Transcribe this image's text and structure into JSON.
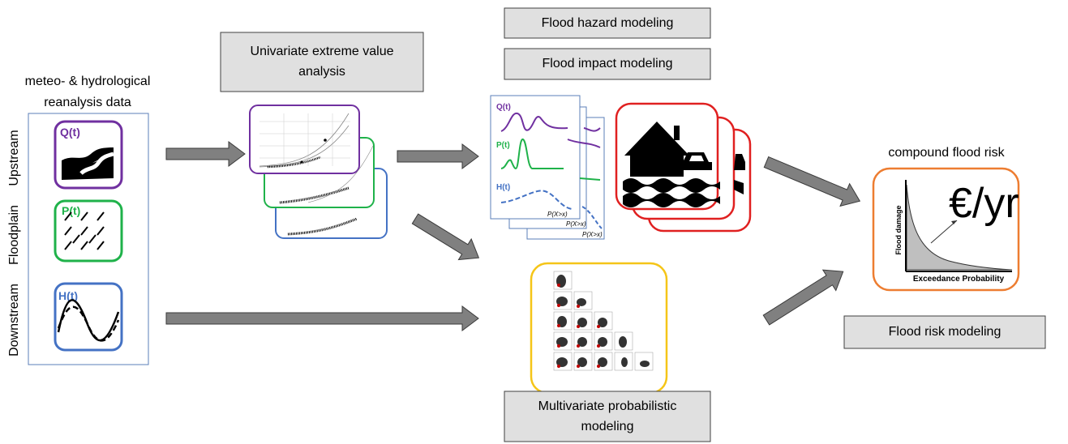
{
  "header_boxes": {
    "hazard": "Flood hazard modeling",
    "impact": "Flood impact modeling"
  },
  "univariate": {
    "lines": [
      "Univariate extreme value",
      "analysis"
    ]
  },
  "input": {
    "lines": [
      "meteo- & hydrological",
      "reanalysis data"
    ],
    "locations": [
      "Upstream",
      "Floodplain",
      "Downstream"
    ],
    "variables": [
      "Q(t)",
      "P(t)",
      "H(t)"
    ]
  },
  "impact_cards": {
    "axis_label": "P(X>x)"
  },
  "risk": {
    "title": "compound flood risk",
    "unit": "€/yr",
    "y_label": "Flood damage",
    "x_label": "Exceedance Probability",
    "box": "Flood risk modeling"
  },
  "multivariate": {
    "lines": [
      "Multivariate probabilistic",
      "modeling"
    ]
  }
}
